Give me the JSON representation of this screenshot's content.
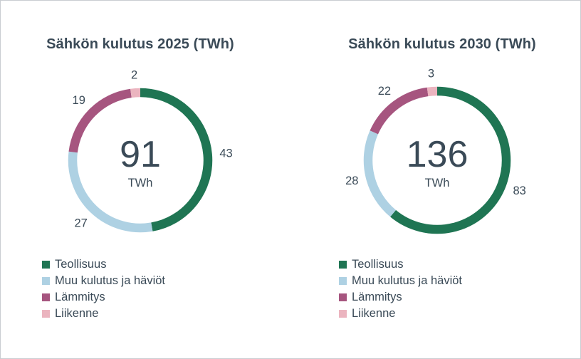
{
  "colors": {
    "Teollisuus": "#1f7553",
    "Muu kulutus ja häviöt": "#aed1e3",
    "Lämmitys": "#a6557f",
    "Liikenne": "#ebb4bf",
    "text": "#3a4a57"
  },
  "chart_data": [
    {
      "type": "pie",
      "title": "Sähkön kulutus 2025 (TWh)",
      "total": "91",
      "unit": "TWh",
      "categories": [
        "Teollisuus",
        "Muu kulutus ja häviöt",
        "Lämmitys",
        "Liikenne"
      ],
      "values": [
        43,
        27,
        19,
        2
      ],
      "data_labels": [
        "43",
        "27",
        "19",
        "2"
      ],
      "legend": [
        "Teollisuus",
        "Muu kulutus ja häviöt",
        "Lämmitys",
        "Liikenne"
      ],
      "legend_position": "bottom-left"
    },
    {
      "type": "pie",
      "title": "Sähkön kulutus 2030 (TWh)",
      "total": "136",
      "unit": "TWh",
      "categories": [
        "Teollisuus",
        "Muu kulutus ja häviöt",
        "Lämmitys",
        "Liikenne"
      ],
      "values": [
        83,
        28,
        22,
        3
      ],
      "data_labels": [
        "83",
        "28",
        "22",
        "3"
      ],
      "legend": [
        "Teollisuus",
        "Muu kulutus ja häviöt",
        "Lämmitys",
        "Liikenne"
      ],
      "legend_position": "bottom-left"
    }
  ]
}
